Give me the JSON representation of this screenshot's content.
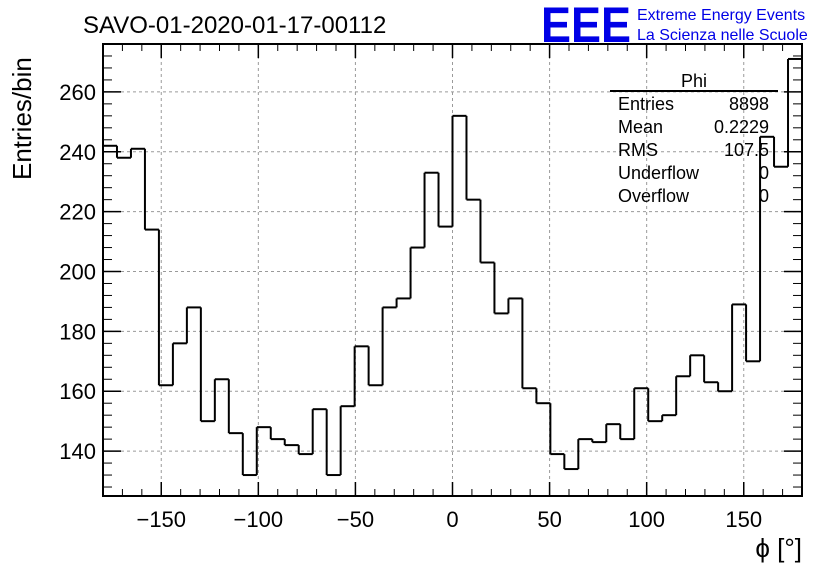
{
  "header": {
    "title": "SAVO-01-2020-01-17-00112",
    "logo": "EEE",
    "org_line1": "Extreme Energy Events",
    "org_line2": "La Scienza nelle Scuole"
  },
  "stats_box": {
    "name": "Phi",
    "rows": [
      {
        "label": "Entries",
        "value": "8898"
      },
      {
        "label": "Mean",
        "value": "0.2229"
      },
      {
        "label": "RMS",
        "value": "107.5"
      },
      {
        "label": "Underflow",
        "value": "0"
      },
      {
        "label": "Overflow",
        "value": "0"
      }
    ]
  },
  "chart_data": {
    "type": "histogram",
    "xlabel": "ϕ [°]",
    "ylabel": "Entries/bin",
    "xlim": [
      -180,
      180
    ],
    "ylim": [
      125,
      276
    ],
    "xticks": [
      -150,
      -100,
      -50,
      0,
      50,
      100,
      150
    ],
    "xtick_labels": [
      "−150",
      "−100",
      "−50",
      "0",
      "50",
      "100",
      "150"
    ],
    "yticks": [
      140,
      160,
      180,
      200,
      220,
      240,
      260
    ],
    "grid": true,
    "bin_width": 7.2,
    "bin_edges_start": -180,
    "values": [
      242,
      238,
      241,
      214,
      162,
      176,
      188,
      150,
      164,
      146,
      132,
      148,
      144,
      142,
      139,
      154,
      132,
      155,
      175,
      162,
      188,
      191,
      208,
      233,
      215,
      252,
      224,
      203,
      186,
      191,
      161,
      156,
      139,
      134,
      144,
      143,
      149,
      144,
      161,
      150,
      152,
      165,
      172,
      163,
      160,
      189,
      170,
      245,
      235,
      271
    ]
  }
}
